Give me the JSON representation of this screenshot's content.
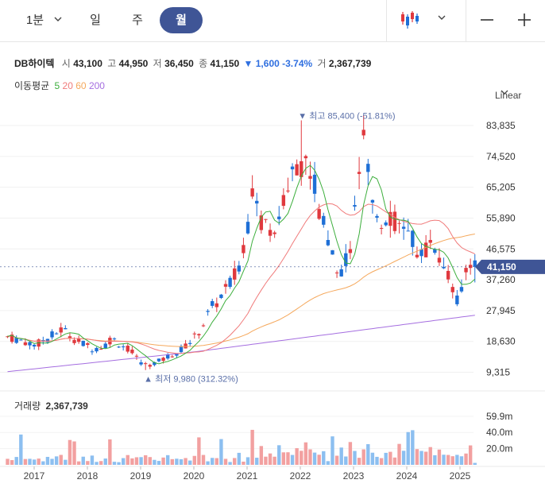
{
  "toolbar": {
    "interval_minute": "1분",
    "interval_day": "일",
    "interval_week": "주",
    "interval_month": "월",
    "chart_type_icon": "candlestick-icon",
    "zoom_out_icon": "minus-icon",
    "zoom_in_icon": "plus-icon"
  },
  "stock": {
    "name": "DB하이텍",
    "open_label": "시",
    "open": "43,100",
    "high_label": "고",
    "high": "44,950",
    "low_label": "저",
    "low": "36,450",
    "close_label": "종",
    "close": "41,150",
    "change": "▼ 1,600",
    "change_pct": "-3.74%",
    "volume_label": "거",
    "volume": "2,367,739"
  },
  "ma": {
    "label": "이동평균",
    "p5": "5",
    "p20": "20",
    "p60": "60",
    "p200": "200"
  },
  "scale_mode": "Linear",
  "price_badge": "41,150",
  "volume_header": {
    "label": "거래량",
    "value": "2,367,739"
  },
  "colors": {
    "up": "#e0393e",
    "down": "#1e6fd6",
    "vol_up": "#f2a0a0",
    "vol_down": "#8cbff0",
    "ma5": "#3cae3c",
    "ma20": "#f07a7a",
    "ma60": "#f5a85c",
    "ma200": "#a56ee0",
    "accent": "#3f5596"
  },
  "chart_data": {
    "type": "candlestick",
    "interval": "monthly",
    "title": "",
    "price_axis": {
      "ticks": [
        9315,
        18630,
        27945,
        37260,
        46575,
        55890,
        65205,
        74520,
        83835
      ],
      "labels": [
        "9,315",
        "18,630",
        "27,945",
        "37,260",
        "46,575",
        "55,890",
        "65,205",
        "74,520",
        "83,835"
      ]
    },
    "volume_axis": {
      "ticks": [
        20,
        40,
        59.9
      ],
      "labels": [
        "20.0m",
        "40.0m",
        "59.9m"
      ],
      "unit": "m"
    },
    "x_axis": {
      "labels": [
        "2017",
        "2018",
        "2019",
        "2020",
        "2021",
        "2022",
        "2023",
        "2024",
        "2025"
      ]
    },
    "annotations": {
      "high_label": "▼ 최고 85,400 (-51.81%)",
      "low_label": "▲ 최저 9,980 (312.32%)"
    },
    "series_points": [
      [
        2016.5,
        20000
      ],
      [
        2016.75,
        19000
      ],
      [
        2017.0,
        17500
      ],
      [
        2017.2,
        19000
      ],
      [
        2017.4,
        21000
      ],
      [
        2017.55,
        22500
      ],
      [
        2017.7,
        20000
      ],
      [
        2017.9,
        18000
      ],
      [
        2018.1,
        16500
      ],
      [
        2018.3,
        17000
      ],
      [
        2018.45,
        19500
      ],
      [
        2018.6,
        18000
      ],
      [
        2018.8,
        16000
      ],
      [
        2018.95,
        13000
      ],
      [
        2019.1,
        11500
      ],
      [
        2019.25,
        12000
      ],
      [
        2019.4,
        13000
      ],
      [
        2019.55,
        14500
      ],
      [
        2019.7,
        15500
      ],
      [
        2019.85,
        17500
      ],
      [
        2020.0,
        19500
      ],
      [
        2020.15,
        23000
      ],
      [
        2020.3,
        28000
      ],
      [
        2020.45,
        31000
      ],
      [
        2020.6,
        34000
      ],
      [
        2020.75,
        37500
      ],
      [
        2020.9,
        44000
      ],
      [
        2021.0,
        54000
      ],
      [
        2021.1,
        61000
      ],
      [
        2021.25,
        56000
      ],
      [
        2021.45,
        52000
      ],
      [
        2021.6,
        57000
      ],
      [
        2021.8,
        66000
      ],
      [
        2021.95,
        74000
      ],
      [
        2022.1,
        72000
      ],
      [
        2022.25,
        68000
      ],
      [
        2022.4,
        55000
      ],
      [
        2022.6,
        44000
      ],
      [
        2022.8,
        40000
      ],
      [
        2022.95,
        47000
      ],
      [
        2023.05,
        68000
      ],
      [
        2023.2,
        78000
      ],
      [
        2023.35,
        60000
      ],
      [
        2023.5,
        55000
      ],
      [
        2023.65,
        58000
      ],
      [
        2023.8,
        54000
      ],
      [
        2023.95,
        52000
      ],
      [
        2024.1,
        49000
      ],
      [
        2024.3,
        44000
      ],
      [
        2024.45,
        50000
      ],
      [
        2024.6,
        46000
      ],
      [
        2024.75,
        41000
      ],
      [
        2024.9,
        33000
      ],
      [
        2025.0,
        30000
      ],
      [
        2025.1,
        40000
      ],
      [
        2025.2,
        43100
      ],
      [
        2025.28,
        41150
      ]
    ]
  }
}
